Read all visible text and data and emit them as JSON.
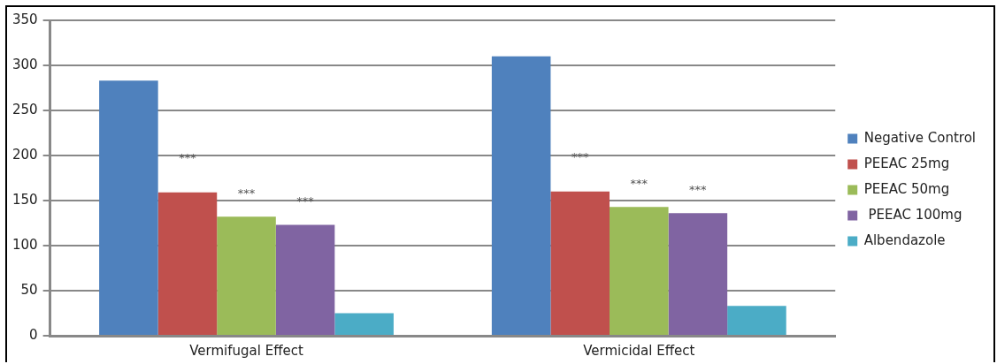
{
  "chart_data": {
    "type": "bar",
    "categories": [
      "Vermifugal Effect",
      "Vermicidal Effect"
    ],
    "series": [
      {
        "name": "Negative Control",
        "color": "#4f81bd",
        "values": [
          283,
          310
        ]
      },
      {
        "name": "PEEAC 25mg",
        "color": "#c0504d",
        "values": [
          159,
          160
        ]
      },
      {
        "name": "PEEAC 50mg",
        "color": "#9bbb59",
        "values": [
          132,
          143
        ]
      },
      {
        "name": " PEEAC 100mg",
        "color": "#8064a2",
        "values": [
          123,
          136
        ]
      },
      {
        "name": "Albendazole",
        "color": "#4bacc6",
        "values": [
          25,
          33
        ]
      }
    ],
    "ylim": [
      0,
      350
    ],
    "yticks": [
      0,
      50,
      100,
      150,
      200,
      250,
      300,
      350
    ],
    "grid": "y",
    "legend": "right",
    "annotations": [
      "***",
      "***",
      "***",
      "***",
      "***",
      "***"
    ]
  }
}
